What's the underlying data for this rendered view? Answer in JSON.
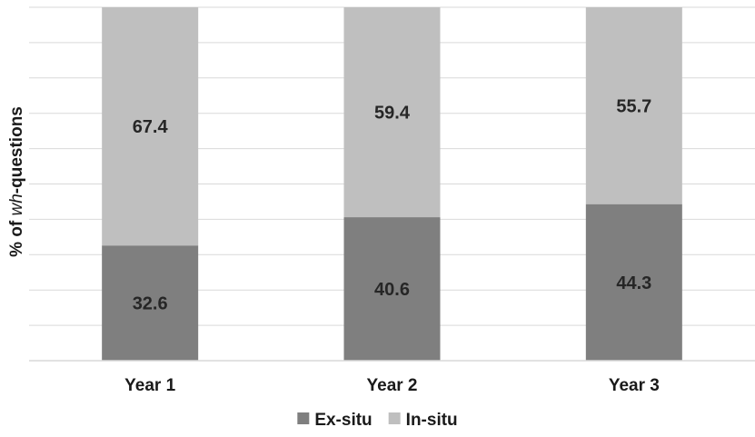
{
  "chart_data": {
    "type": "bar",
    "stacked": true,
    "categories": [
      "Year 1",
      "Year 2",
      "Year 3"
    ],
    "series": [
      {
        "name": "Ex-situ",
        "values": [
          32.6,
          40.6,
          44.3
        ],
        "color": "#7f7f7f"
      },
      {
        "name": "In-situ",
        "values": [
          67.4,
          59.4,
          55.7
        ],
        "color": "#bfbfbf"
      }
    ],
    "ylabel_parts": [
      "% of ",
      "wh",
      "-questions"
    ],
    "ylim": [
      0,
      100
    ],
    "grid": true,
    "gridline_color": "#d9d9d9",
    "legend_position": "bottom"
  }
}
